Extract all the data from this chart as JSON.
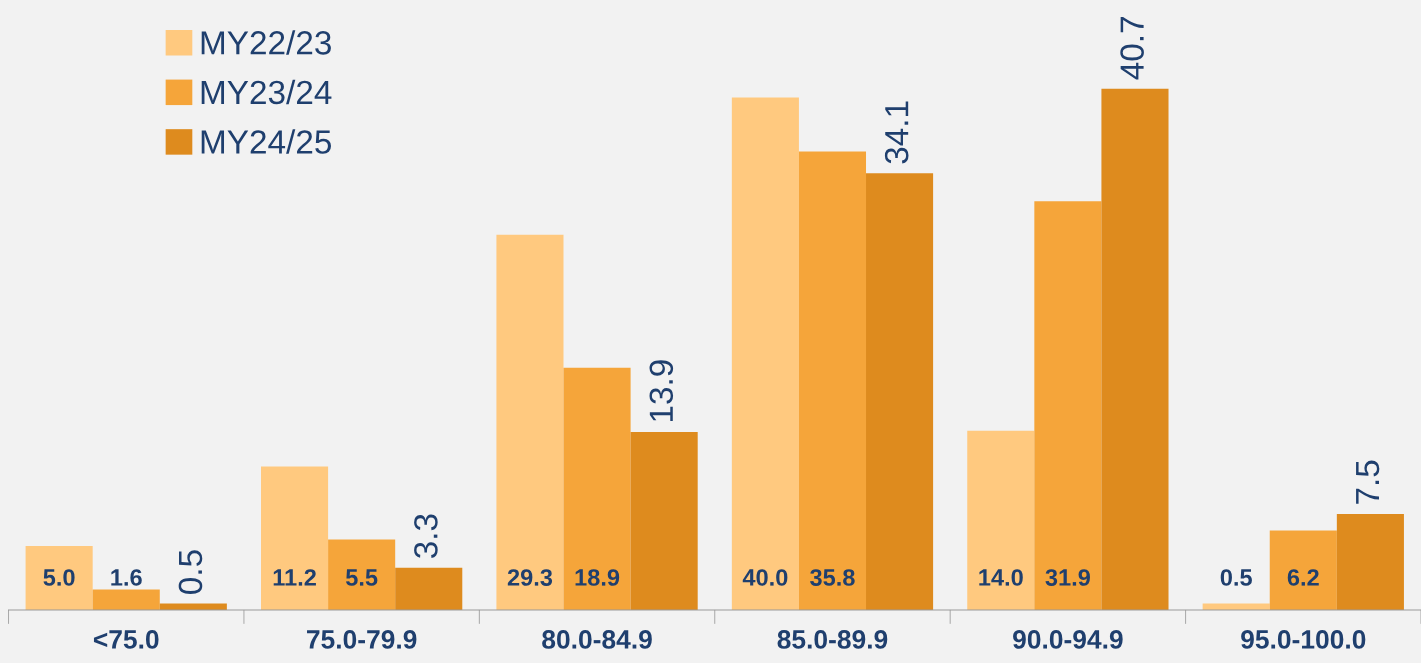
{
  "chart_data": {
    "type": "bar",
    "categories": [
      "<75.0",
      "75.0-79.9",
      "80.0-84.9",
      "85.0-89.9",
      "90.0-94.9",
      "95.0-100.0"
    ],
    "series": [
      {
        "name": "MY22/23",
        "color": "#ffc97f",
        "values": [
          5.0,
          11.2,
          29.3,
          40.0,
          14.0,
          0.5
        ],
        "value_labels": [
          "5.0",
          "11.2",
          "29.3",
          "40.0",
          "14.0",
          "0.5"
        ]
      },
      {
        "name": "MY23/24",
        "color": "#f5a53a",
        "values": [
          1.6,
          5.5,
          18.9,
          35.8,
          31.9,
          6.2
        ],
        "value_labels": [
          "1.6",
          "5.5",
          "18.9",
          "35.8",
          "31.9",
          "6.2"
        ]
      },
      {
        "name": "MY24/25",
        "color": "#de8b1e",
        "values": [
          0.5,
          3.3,
          13.9,
          34.1,
          40.7,
          7.5
        ],
        "value_labels": [
          "0.5",
          "3.3",
          "13.9",
          "34.1",
          "40.7",
          "7.5"
        ]
      }
    ],
    "legend": "top left",
    "grid": false
  }
}
